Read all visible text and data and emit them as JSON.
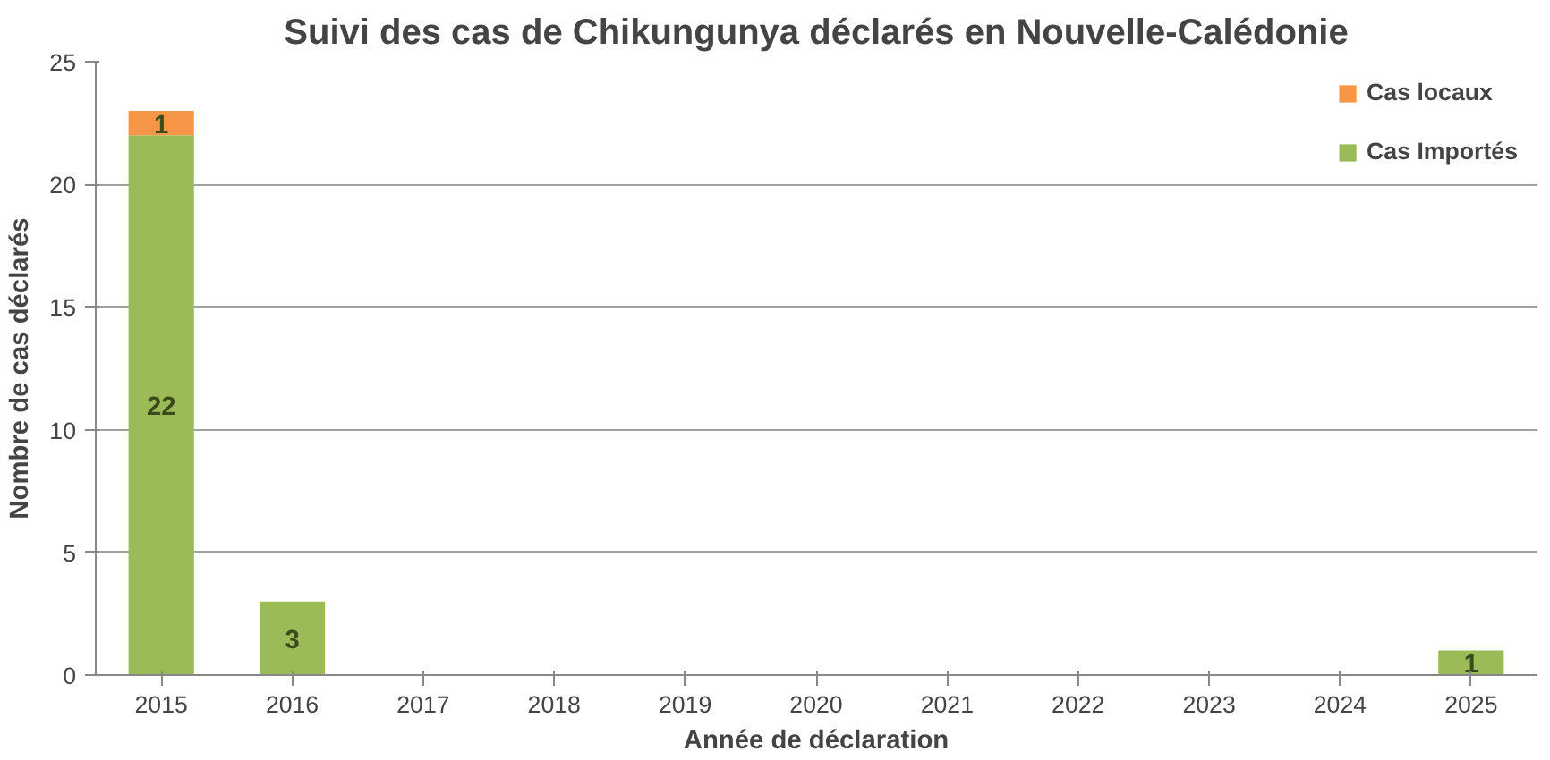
{
  "chart_data": {
    "type": "bar",
    "stacked": true,
    "title": "Suivi des cas de Chikungunya déclarés en Nouvelle-Calédonie",
    "xlabel": "Année de déclaration",
    "ylabel": "Nombre de cas déclarés",
    "categories": [
      "2015",
      "2016",
      "2017",
      "2018",
      "2019",
      "2020",
      "2021",
      "2022",
      "2023",
      "2024",
      "2025"
    ],
    "series": [
      {
        "name": "Cas Importés",
        "color": "#9bbb59",
        "values": [
          22,
          3,
          0,
          0,
          0,
          0,
          0,
          0,
          0,
          0,
          1
        ],
        "value_labels": [
          "22",
          "3",
          null,
          null,
          null,
          null,
          null,
          null,
          null,
          null,
          "1"
        ]
      },
      {
        "name": "Cas locaux",
        "color": "#f79646",
        "values": [
          1,
          0,
          0,
          0,
          0,
          0,
          0,
          0,
          0,
          0,
          0
        ],
        "value_labels": [
          "1",
          null,
          null,
          null,
          null,
          null,
          null,
          null,
          null,
          null,
          null
        ]
      }
    ],
    "ylim": [
      0,
      25
    ],
    "yticks": [
      0,
      5,
      10,
      15,
      20,
      25
    ],
    "grid": "y",
    "legend": "top right"
  }
}
